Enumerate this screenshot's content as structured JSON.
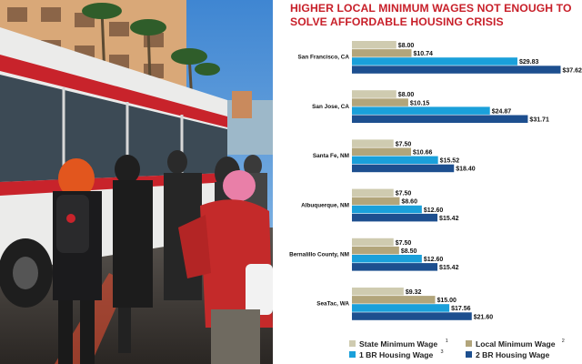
{
  "chart_data": {
    "type": "bar",
    "orientation": "horizontal",
    "title": "HIGHER LOCAL MINIMUM WAGES NOT ENOUGH TO SOLVE AFFORDABLE HOUSING CRISIS",
    "categories": [
      "San Francisco, CA",
      "San Jose, CA",
      "Santa Fe, NM",
      "Albuquerque, NM",
      "Bernalillo County, NM",
      "SeaTac, WA"
    ],
    "series": [
      {
        "name": "State Minimum Wage",
        "footnote": "1",
        "color": "#cfcbb0",
        "values": [
          8.0,
          8.0,
          7.5,
          7.5,
          7.5,
          9.32
        ],
        "labels": [
          "$8.00",
          "$8.00",
          "$7.50",
          "$7.50",
          "$7.50",
          "$9.32"
        ]
      },
      {
        "name": "Local Minimum Wage",
        "footnote": "2",
        "color": "#b2a57b",
        "values": [
          10.74,
          10.15,
          10.66,
          8.6,
          8.5,
          15.0
        ],
        "labels": [
          "$10.74",
          "$10.15",
          "$10.66",
          "$8.60",
          "$8.50",
          "$15.00"
        ]
      },
      {
        "name": "1 BR Housing Wage",
        "footnote": "3",
        "color": "#1aa0da",
        "values": [
          29.83,
          24.87,
          15.52,
          12.6,
          12.6,
          17.56
        ],
        "labels": [
          "$29.83",
          "$24.87",
          "$15.52",
          "$12.60",
          "$12.60",
          "$17.56"
        ]
      },
      {
        "name": "2 BR Housing Wage",
        "footnote": "",
        "color": "#1d4f8f",
        "values": [
          37.62,
          31.71,
          18.4,
          15.42,
          15.42,
          21.6
        ],
        "labels": [
          "$37.62",
          "$31.71",
          "$18.40",
          "$15.42",
          "$15.42",
          "$21.60"
        ]
      }
    ],
    "xlim": [
      0,
      40
    ],
    "grid": false,
    "legend_position": "bottom",
    "legend_columns": 2
  },
  "photo": {
    "description_icon": "bus-stop-photo",
    "colors": {
      "sky": "#6aa6dc",
      "bus": "#ededed",
      "stripe": "#c8232b",
      "sidewalk": "#3a3733",
      "red_coat": "#c42a2a",
      "pink_hat": "#e97fa8",
      "orange_hair": "#e2561e"
    }
  }
}
